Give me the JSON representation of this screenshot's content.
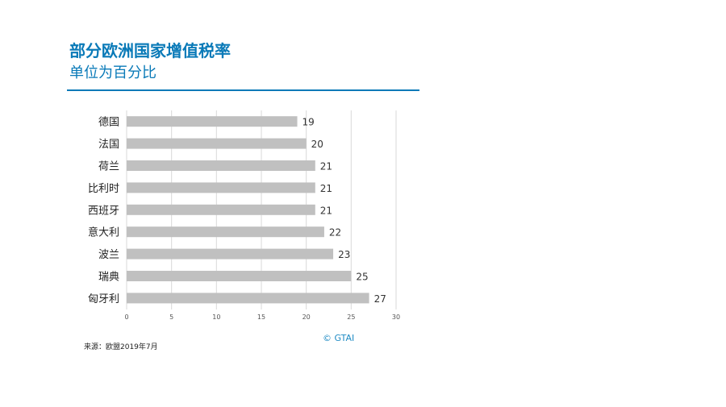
{
  "header": {
    "title": "部分欧洲国家增值税率",
    "subtitle": "单位为百分比"
  },
  "footer": {
    "source": "来源：欧盟2019年7月",
    "credit": "© GTAI"
  },
  "colors": {
    "accent": "#0a7ab8",
    "bar": "#c0c0c0",
    "grid": "#d9d9d9"
  },
  "chart_data": {
    "type": "bar",
    "orientation": "horizontal",
    "categories": [
      "德国",
      "法国",
      "荷兰",
      "比利时",
      "西班牙",
      "意大利",
      "波兰",
      "瑞典",
      "匈牙利"
    ],
    "values": [
      19,
      20,
      21,
      21,
      21,
      22,
      23,
      25,
      27
    ],
    "xlim": [
      0,
      30
    ],
    "xticks": [
      0,
      5,
      10,
      15,
      20,
      25,
      30
    ],
    "grid": true,
    "data_labels": true,
    "legend": "none"
  }
}
